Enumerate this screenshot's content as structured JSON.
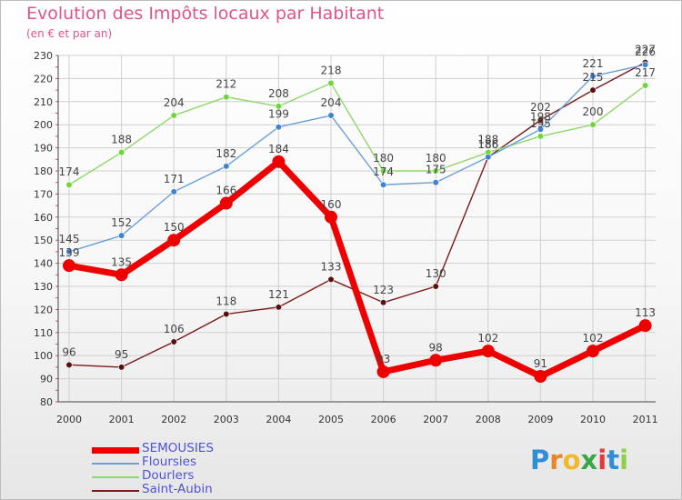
{
  "title": "Evolution des Impôts locaux par Habitant",
  "subtitle": "(en € et par an)",
  "logo_text": "Proxiti",
  "chart_data": {
    "type": "line",
    "x": [
      "2000",
      "2001",
      "2002",
      "2003",
      "2004",
      "2005",
      "2006",
      "2007",
      "2008",
      "2009",
      "2010",
      "2011"
    ],
    "ylim": [
      80,
      230
    ],
    "yticks": [
      "80",
      "90",
      "100",
      "110",
      "120",
      "130",
      "140",
      "150",
      "160",
      "170",
      "180",
      "190",
      "200",
      "210",
      "220",
      "230"
    ],
    "legend_position": "bottom-left",
    "series": [
      {
        "name": "Saint-Aubin",
        "color": "#7a1a1a",
        "marker": "#5a1010",
        "values": [
          96,
          95,
          106,
          118,
          121,
          133,
          123,
          130,
          186,
          202,
          215,
          227
        ]
      },
      {
        "name": "Dourlers",
        "color": "#8fd86a",
        "marker": "#6dd63a",
        "values": [
          174,
          188,
          204,
          212,
          208,
          218,
          180,
          180,
          188,
          195,
          200,
          217
        ]
      },
      {
        "name": "Floursies",
        "color": "#6b9fd8",
        "marker": "#3d84d4",
        "values": [
          145,
          152,
          171,
          182,
          199,
          204,
          174,
          175,
          186,
          198,
          221,
          226
        ]
      },
      {
        "name": "SEMOUSIES",
        "color": "#ee0000",
        "marker": "#ee0000",
        "values": [
          139,
          135,
          150,
          166,
          184,
          160,
          93,
          98,
          102,
          91,
          102,
          113
        ]
      }
    ]
  }
}
